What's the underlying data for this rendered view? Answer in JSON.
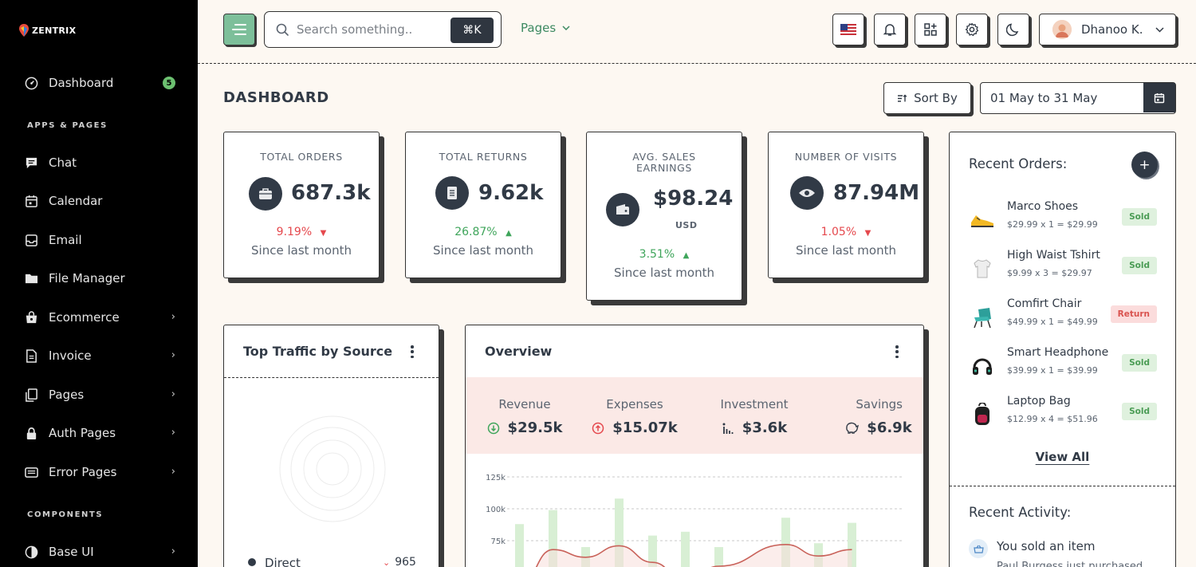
{
  "brand": {
    "name": "ZENTRIX"
  },
  "sidebar": {
    "items": [
      {
        "label": "Dashboard",
        "badge": "5",
        "icon": "dashboard-icon"
      },
      {
        "label": "Chat",
        "icon": "chat-icon"
      },
      {
        "label": "Calendar",
        "icon": "calendar-icon"
      },
      {
        "label": "Email",
        "icon": "email-icon"
      },
      {
        "label": "File Manager",
        "icon": "folder-icon"
      },
      {
        "label": "Ecommerce",
        "icon": "bag-icon"
      },
      {
        "label": "Invoice",
        "icon": "invoice-icon"
      },
      {
        "label": "Pages",
        "icon": "pages-icon"
      },
      {
        "label": "Auth Pages",
        "icon": "lock-icon"
      },
      {
        "label": "Error Pages",
        "icon": "error-icon"
      },
      {
        "label": "Base UI",
        "icon": "half-circle-icon"
      }
    ],
    "sections": {
      "apps": "APPS & PAGES",
      "components": "COMPONENTS"
    }
  },
  "topbar": {
    "search_placeholder": "Search something..",
    "shortcut": "⌘K",
    "pages_label": "Pages",
    "user_name": "Dhanoo K."
  },
  "header": {
    "title": "DASHBOARD",
    "sort_label": "Sort By",
    "date_range": "01 May to 31 May"
  },
  "stats": [
    {
      "label": "TOTAL ORDERS",
      "value": "687.3k",
      "change": "9.19%",
      "direction": "down",
      "since": "Since last month"
    },
    {
      "label": "TOTAL RETURNS",
      "value": "9.62k",
      "change": "26.87%",
      "direction": "up",
      "since": "Since last month"
    },
    {
      "label_line1": "AVG. SALES",
      "label_line2": "EARNINGS",
      "value": "$98.24",
      "unit": "USD",
      "change": "3.51%",
      "direction": "up",
      "since": "Since last month"
    },
    {
      "label": "NUMBER OF VISITS",
      "value": "87.94M",
      "change": "1.05%",
      "direction": "down",
      "since": "Since last month"
    }
  ],
  "traffic": {
    "title": "Top Traffic by Source",
    "first_source": "Direct",
    "first_value": "965"
  },
  "overview": {
    "title": "Overview",
    "metrics": [
      {
        "label": "Revenue",
        "value": "$29.5k"
      },
      {
        "label": "Expenses",
        "value": "$15.07k"
      },
      {
        "label": "Investment",
        "value": "$3.6k"
      },
      {
        "label": "Savings",
        "value": "$6.9k"
      }
    ]
  },
  "chart_data": {
    "type": "bar",
    "ytick_labels": [
      "125k",
      "100k",
      "75k"
    ],
    "ylim": [
      50000,
      125000
    ],
    "series": [
      {
        "values": [
          88000,
          99000,
          70000,
          108000,
          79000,
          82000,
          70000,
          93000,
          73000,
          89000
        ]
      }
    ],
    "line": {
      "values": [
        40000,
        68000,
        62000,
        71000,
        58000,
        43000,
        55000,
        72000,
        63000,
        68000
      ]
    },
    "colors": {
      "bars": "#d8efd4",
      "line": "#c9625a"
    }
  },
  "recent_orders": {
    "title": "Recent Orders:",
    "items": [
      {
        "name": "Marco Shoes",
        "calc": "$29.99 x 1 = $29.99",
        "status": "Sold",
        "icon": "shoe-icon"
      },
      {
        "name": "High Waist Tshirt",
        "calc": "$9.99 x 3 = $29.97",
        "status": "Sold",
        "icon": "tshirt-icon"
      },
      {
        "name": "Comfirt Chair",
        "calc": "$49.99 x 1 = $49.99",
        "status": "Return",
        "icon": "chair-icon"
      },
      {
        "name": "Smart Headphone",
        "calc": "$39.99 x 1 = $39.99",
        "status": "Sold",
        "icon": "headphone-icon"
      },
      {
        "name": "Laptop Bag",
        "calc": "$12.99 x 4 = $51.96",
        "status": "Sold",
        "icon": "backpack-icon"
      }
    ],
    "view_all": "View All"
  },
  "recent_activity": {
    "title": "Recent Activity:",
    "first_item": "You sold an item",
    "first_item_sub": "Paul Burgess just purchased"
  }
}
